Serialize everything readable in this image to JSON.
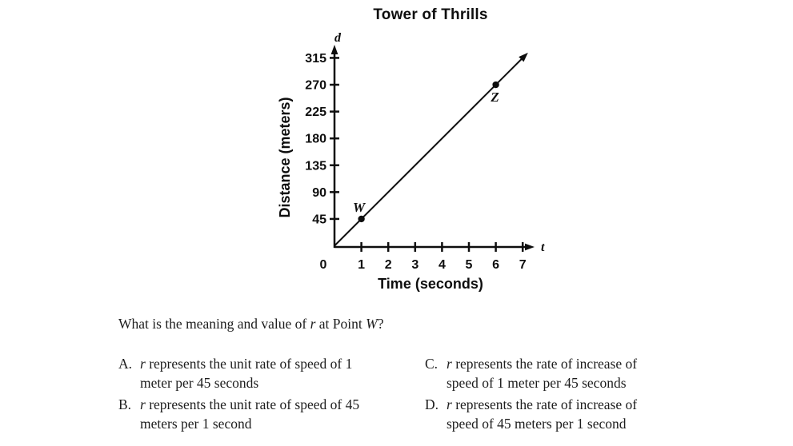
{
  "chart_data": {
    "type": "line",
    "title": "Tower of Thrills",
    "xlabel": "Time (seconds)",
    "ylabel": "Distance (meters)",
    "x_axis_variable": "t",
    "y_axis_variable": "d",
    "x_ticks": [
      0,
      1,
      2,
      3,
      4,
      5,
      6,
      7
    ],
    "y_ticks": [
      45,
      90,
      135,
      180,
      225,
      270,
      315
    ],
    "xlim": [
      0,
      7.5
    ],
    "ylim": [
      0,
      340
    ],
    "grid": false,
    "series": [
      {
        "name": "distance vs time line",
        "x": [
          0,
          7.05
        ],
        "y": [
          0,
          317.25
        ],
        "arrow_end": true
      }
    ],
    "points": [
      {
        "label": "W",
        "x": 1,
        "y": 45
      },
      {
        "label": "Z",
        "x": 6,
        "y": 270
      }
    ]
  },
  "question": {
    "pre": "What is the meaning and value of ",
    "var1": "r",
    "mid": " at Point ",
    "var2": "W",
    "end": "?"
  },
  "options": [
    {
      "letter": "A.",
      "var": "r",
      "line1": " represents the unit rate of speed of 1",
      "line2": "meter per 45 seconds"
    },
    {
      "letter": "B.",
      "var": "r",
      "line1": " represents the unit rate of speed of 45",
      "line2": "meters per 1 second"
    },
    {
      "letter": "C.",
      "var": "r",
      "line1": " represents the rate of increase of",
      "line2": "speed of 1 meter per 45 seconds"
    },
    {
      "letter": "D.",
      "var": "r",
      "line1": " represents the rate of increase of",
      "line2": "speed of 45 meters per 1 second"
    }
  ],
  "colors": {
    "ink": "#0e0e0e",
    "text": "#1d1d1d",
    "background": "#ffffff"
  }
}
